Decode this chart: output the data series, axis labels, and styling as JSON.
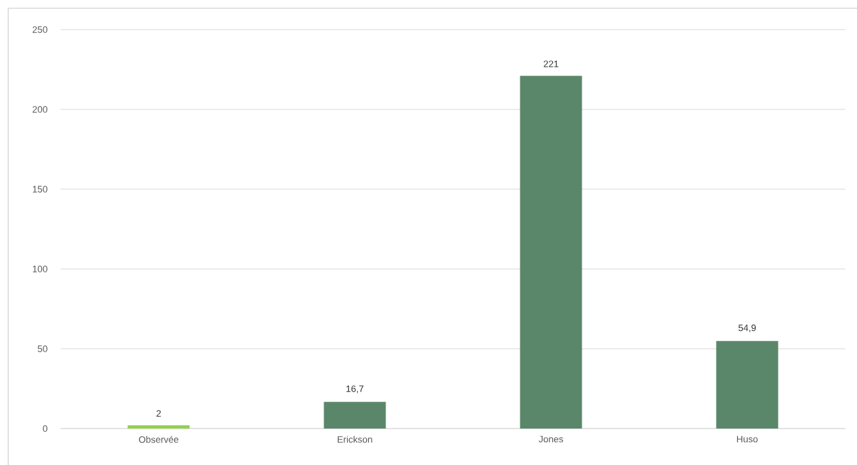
{
  "chart_data": {
    "type": "bar",
    "categories": [
      "Observée",
      "Erickson",
      "Jones",
      "Huso"
    ],
    "values": [
      2,
      16.7,
      221,
      54.9
    ],
    "value_labels": [
      "2",
      "16,7",
      "221",
      "54,9"
    ],
    "colors": [
      "#92d050",
      "#5a8769",
      "#5a8769",
      "#5a8769"
    ],
    "ylim": [
      0,
      250
    ],
    "yticks": [
      0,
      50,
      100,
      150,
      200,
      250
    ],
    "grid": "y"
  }
}
